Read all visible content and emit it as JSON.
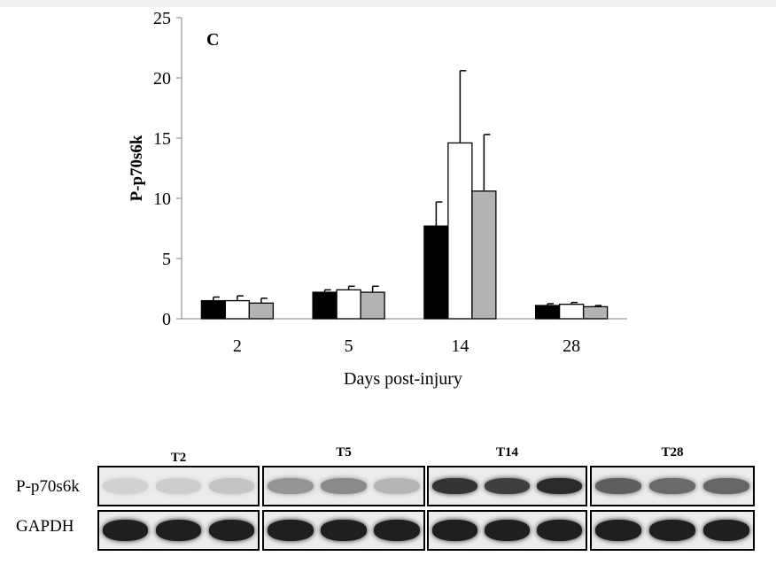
{
  "chart_data": {
    "type": "bar",
    "panel_label": "C",
    "xlabel": "Days post-injury",
    "ylabel": "P-p70s6k",
    "ylim": [
      0,
      25
    ],
    "yticks": [
      0,
      5,
      10,
      15,
      20,
      25
    ],
    "categories": [
      "2",
      "5",
      "14",
      "28"
    ],
    "series": [
      {
        "values": [
          1.5,
          2.2,
          7.7,
          1.1
        ],
        "errors": [
          0.3,
          0.2,
          2.0,
          0.15
        ],
        "color": "#000000"
      },
      {
        "values": [
          1.5,
          2.4,
          14.6,
          1.2
        ],
        "errors": [
          0.4,
          0.3,
          6.0,
          0.15
        ],
        "color": "#ffffff"
      },
      {
        "values": [
          1.3,
          2.2,
          10.6,
          1.0
        ],
        "errors": [
          0.4,
          0.5,
          4.7,
          0.1
        ],
        "color": "#b3b3b3"
      }
    ],
    "legend": "none",
    "grid": false
  },
  "blot": {
    "rows": [
      "P-p70s6k",
      "GAPDH"
    ],
    "panels": [
      {
        "title": "T2",
        "band_intensity": [
          0.12,
          0.14,
          0.18
        ]
      },
      {
        "title": "T5",
        "band_intensity": [
          0.4,
          0.45,
          0.25
        ]
      },
      {
        "title": "T14",
        "band_intensity": [
          0.85,
          0.8,
          0.9
        ]
      },
      {
        "title": "T28",
        "band_intensity": [
          0.65,
          0.6,
          0.62
        ]
      }
    ],
    "gapdh_intensity": 0.95
  }
}
